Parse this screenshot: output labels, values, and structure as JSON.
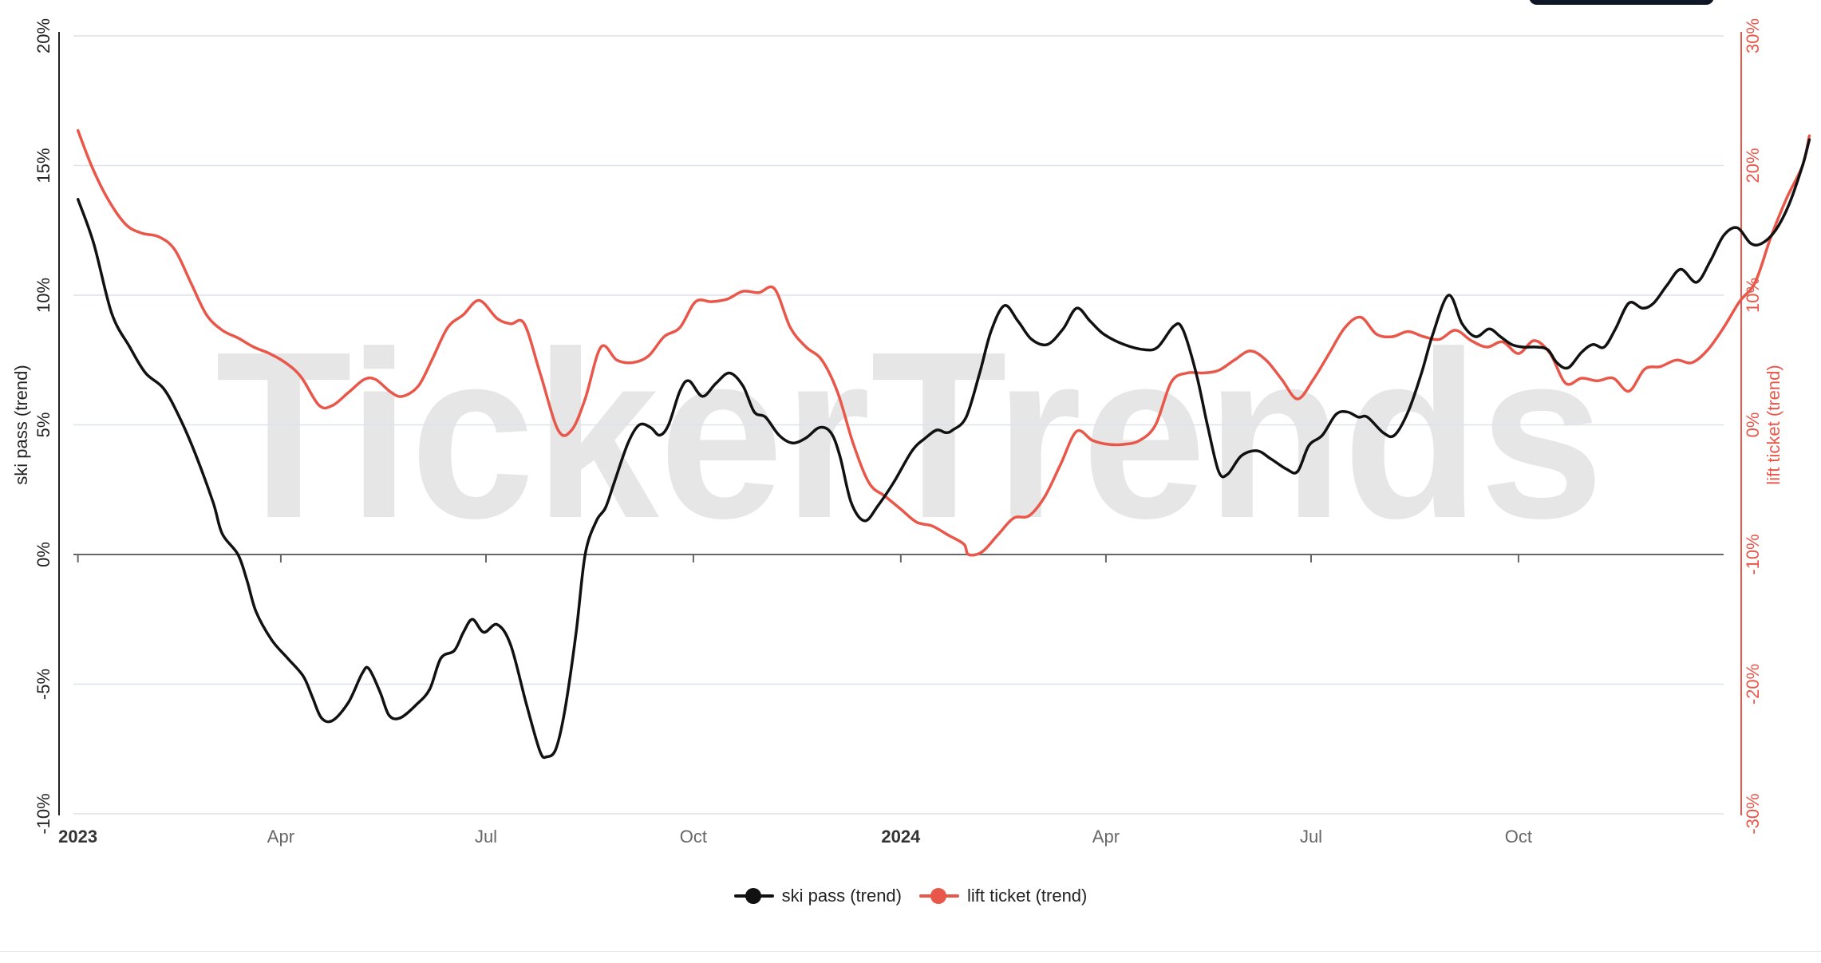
{
  "watermark": "TickerTrends",
  "colors": {
    "ski": "#111111",
    "lift": "#e8574a",
    "grid": "#dde1ea",
    "axis": "#222222"
  },
  "legend": [
    {
      "label": "ski pass  (trend)",
      "color": "#111111"
    },
    {
      "label": "lift ticket  (trend)",
      "color": "#e8574a"
    }
  ],
  "chart_data": {
    "type": "line",
    "x_ticks": [
      "2023",
      "Apr",
      "Jul",
      "Oct",
      "2024",
      "Apr",
      "Jul",
      "Oct"
    ],
    "x_tick_dates": [
      "2023-01-01",
      "2023-04-01",
      "2023-07-01",
      "2023-10-01",
      "2024-01-01",
      "2024-04-01",
      "2024-07-01",
      "2024-10-01"
    ],
    "x_range": [
      "2022-12-30",
      "2024-12-31"
    ],
    "left_axis": {
      "label": "ski pass  (trend)",
      "range": [
        -10,
        20
      ],
      "ticks": [
        "-10%",
        "-5%",
        "0%",
        "5%",
        "10%",
        "15%",
        "20%"
      ]
    },
    "right_axis": {
      "label": "lift ticket  (trend)",
      "range": [
        -30,
        30
      ],
      "ticks": [
        "-30%",
        "-20%",
        "-10%",
        "0%",
        "10%",
        "20%",
        "30%"
      ]
    },
    "grid": true,
    "legend_position": "bottom-center",
    "series": [
      {
        "name": "ski pass  (trend)",
        "axis": "left",
        "points": [
          [
            "2023-01-01",
            13.7
          ],
          [
            "2023-01-08",
            12.0
          ],
          [
            "2023-01-16",
            9.3
          ],
          [
            "2023-01-24",
            8.0
          ],
          [
            "2023-01-31",
            7.0
          ],
          [
            "2023-02-08",
            6.4
          ],
          [
            "2023-02-15",
            5.3
          ],
          [
            "2023-02-22",
            3.9
          ],
          [
            "2023-03-02",
            2.0
          ],
          [
            "2023-03-06",
            0.8
          ],
          [
            "2023-03-13",
            0.0
          ],
          [
            "2023-03-17",
            -1.0
          ],
          [
            "2023-03-21",
            -2.2
          ],
          [
            "2023-03-28",
            -3.3
          ],
          [
            "2023-04-04",
            -4.0
          ],
          [
            "2023-04-11",
            -4.7
          ],
          [
            "2023-04-15",
            -5.5
          ],
          [
            "2023-04-19",
            -6.3
          ],
          [
            "2023-04-24",
            -6.4
          ],
          [
            "2023-05-01",
            -5.7
          ],
          [
            "2023-05-07",
            -4.6
          ],
          [
            "2023-05-10",
            -4.4
          ],
          [
            "2023-05-15",
            -5.3
          ],
          [
            "2023-05-19",
            -6.2
          ],
          [
            "2023-05-24",
            -6.3
          ],
          [
            "2023-05-31",
            -5.8
          ],
          [
            "2023-06-06",
            -5.2
          ],
          [
            "2023-06-11",
            -4.0
          ],
          [
            "2023-06-17",
            -3.7
          ],
          [
            "2023-06-21",
            -3.0
          ],
          [
            "2023-06-25",
            -2.5
          ],
          [
            "2023-06-30",
            -3.0
          ],
          [
            "2023-07-06",
            -2.7
          ],
          [
            "2023-07-12",
            -3.5
          ],
          [
            "2023-07-19",
            -5.8
          ],
          [
            "2023-07-25",
            -7.6
          ],
          [
            "2023-07-28",
            -7.8
          ],
          [
            "2023-08-01",
            -7.5
          ],
          [
            "2023-08-05",
            -6.0
          ],
          [
            "2023-08-10",
            -3.0
          ],
          [
            "2023-08-14",
            0.0
          ],
          [
            "2023-08-19",
            1.3
          ],
          [
            "2023-08-23",
            1.8
          ],
          [
            "2023-08-27",
            2.8
          ],
          [
            "2023-09-02",
            4.3
          ],
          [
            "2023-09-07",
            5.0
          ],
          [
            "2023-09-12",
            4.9
          ],
          [
            "2023-09-16",
            4.6
          ],
          [
            "2023-09-20",
            5.0
          ],
          [
            "2023-09-25",
            6.3
          ],
          [
            "2023-09-29",
            6.7
          ],
          [
            "2023-10-05",
            6.1
          ],
          [
            "2023-10-11",
            6.6
          ],
          [
            "2023-10-17",
            7.0
          ],
          [
            "2023-10-23",
            6.5
          ],
          [
            "2023-10-28",
            5.5
          ],
          [
            "2023-11-02",
            5.3
          ],
          [
            "2023-11-08",
            4.6
          ],
          [
            "2023-11-14",
            4.3
          ],
          [
            "2023-11-20",
            4.5
          ],
          [
            "2023-11-26",
            4.9
          ],
          [
            "2023-12-01",
            4.7
          ],
          [
            "2023-12-05",
            3.8
          ],
          [
            "2023-12-10",
            2.0
          ],
          [
            "2023-12-16",
            1.3
          ],
          [
            "2023-12-22",
            1.9
          ],
          [
            "2023-12-29",
            2.8
          ],
          [
            "2024-01-06",
            4.0
          ],
          [
            "2024-01-12",
            4.5
          ],
          [
            "2024-01-17",
            4.8
          ],
          [
            "2024-01-21",
            4.7
          ],
          [
            "2024-01-24",
            4.8
          ],
          [
            "2024-01-30",
            5.3
          ],
          [
            "2024-02-05",
            7.0
          ],
          [
            "2024-02-10",
            8.6
          ],
          [
            "2024-02-16",
            9.6
          ],
          [
            "2024-02-22",
            9.0
          ],
          [
            "2024-02-28",
            8.3
          ],
          [
            "2024-03-06",
            8.1
          ],
          [
            "2024-03-13",
            8.7
          ],
          [
            "2024-03-19",
            9.5
          ],
          [
            "2024-03-25",
            9.0
          ],
          [
            "2024-03-31",
            8.5
          ],
          [
            "2024-04-09",
            8.1
          ],
          [
            "2024-04-18",
            7.9
          ],
          [
            "2024-04-24",
            8.0
          ],
          [
            "2024-05-01",
            8.8
          ],
          [
            "2024-05-05",
            8.7
          ],
          [
            "2024-05-11",
            7.0
          ],
          [
            "2024-05-16",
            5.0
          ],
          [
            "2024-05-21",
            3.2
          ],
          [
            "2024-05-25",
            3.1
          ],
          [
            "2024-05-31",
            3.8
          ],
          [
            "2024-06-07",
            4.0
          ],
          [
            "2024-06-13",
            3.7
          ],
          [
            "2024-06-20",
            3.3
          ],
          [
            "2024-06-25",
            3.2
          ],
          [
            "2024-06-30",
            4.2
          ],
          [
            "2024-07-06",
            4.6
          ],
          [
            "2024-07-12",
            5.4
          ],
          [
            "2024-07-17",
            5.5
          ],
          [
            "2024-07-22",
            5.3
          ],
          [
            "2024-07-26",
            5.3
          ],
          [
            "2024-08-02",
            4.7
          ],
          [
            "2024-08-07",
            4.6
          ],
          [
            "2024-08-13",
            5.5
          ],
          [
            "2024-08-19",
            7.0
          ],
          [
            "2024-08-24",
            8.5
          ],
          [
            "2024-08-31",
            10.0
          ],
          [
            "2024-09-06",
            8.9
          ],
          [
            "2024-09-12",
            8.4
          ],
          [
            "2024-09-18",
            8.7
          ],
          [
            "2024-09-23",
            8.4
          ],
          [
            "2024-09-28",
            8.1
          ],
          [
            "2024-10-03",
            8.0
          ],
          [
            "2024-10-09",
            8.0
          ],
          [
            "2024-10-14",
            7.9
          ],
          [
            "2024-10-18",
            7.4
          ],
          [
            "2024-10-23",
            7.2
          ],
          [
            "2024-10-29",
            7.8
          ],
          [
            "2024-11-03",
            8.1
          ],
          [
            "2024-11-08",
            8.0
          ],
          [
            "2024-11-13",
            8.7
          ],
          [
            "2024-11-19",
            9.7
          ],
          [
            "2024-11-25",
            9.5
          ],
          [
            "2024-11-30",
            9.7
          ],
          [
            "2024-12-06",
            10.4
          ],
          [
            "2024-12-12",
            11.0
          ],
          [
            "2024-12-19",
            10.5
          ],
          [
            "2024-12-25",
            11.3
          ],
          [
            "2024-12-31",
            12.3
          ],
          [
            "2025-01-06",
            12.6
          ],
          [
            "2025-01-12",
            12.0
          ],
          [
            "2025-01-17",
            12.0
          ],
          [
            "2025-01-23",
            12.5
          ],
          [
            "2025-01-29",
            13.5
          ],
          [
            "2025-02-04",
            15.0
          ],
          [
            "2025-02-07",
            16.0
          ]
        ]
      },
      {
        "name": "lift ticket  (trend)",
        "axis": "right",
        "points": [
          [
            "2023-01-01",
            22.7
          ],
          [
            "2023-01-07",
            20.0
          ],
          [
            "2023-01-14",
            17.5
          ],
          [
            "2023-01-22",
            15.5
          ],
          [
            "2023-01-29",
            14.8
          ],
          [
            "2023-02-06",
            14.5
          ],
          [
            "2023-02-13",
            13.5
          ],
          [
            "2023-02-20",
            11.0
          ],
          [
            "2023-02-27",
            8.5
          ],
          [
            "2023-03-06",
            7.3
          ],
          [
            "2023-03-13",
            6.7
          ],
          [
            "2023-03-20",
            6.0
          ],
          [
            "2023-03-27",
            5.5
          ],
          [
            "2023-04-03",
            4.8
          ],
          [
            "2023-04-10",
            3.7
          ],
          [
            "2023-04-18",
            1.5
          ],
          [
            "2023-04-24",
            1.5
          ],
          [
            "2023-05-01",
            2.5
          ],
          [
            "2023-05-08",
            3.5
          ],
          [
            "2023-05-13",
            3.5
          ],
          [
            "2023-05-20",
            2.5
          ],
          [
            "2023-05-25",
            2.2
          ],
          [
            "2023-06-01",
            3.0
          ],
          [
            "2023-06-07",
            5.0
          ],
          [
            "2023-06-14",
            7.5
          ],
          [
            "2023-06-21",
            8.5
          ],
          [
            "2023-06-28",
            9.6
          ],
          [
            "2023-07-06",
            8.2
          ],
          [
            "2023-07-12",
            7.8
          ],
          [
            "2023-07-18",
            7.8
          ],
          [
            "2023-07-25",
            4.0
          ],
          [
            "2023-08-02",
            -0.4
          ],
          [
            "2023-08-08",
            -0.4
          ],
          [
            "2023-08-14",
            2.0
          ],
          [
            "2023-08-21",
            6.0
          ],
          [
            "2023-08-28",
            5.0
          ],
          [
            "2023-09-04",
            4.8
          ],
          [
            "2023-09-11",
            5.3
          ],
          [
            "2023-09-18",
            6.8
          ],
          [
            "2023-09-25",
            7.5
          ],
          [
            "2023-10-02",
            9.5
          ],
          [
            "2023-10-09",
            9.5
          ],
          [
            "2023-10-16",
            9.7
          ],
          [
            "2023-10-23",
            10.3
          ],
          [
            "2023-10-30",
            10.2
          ],
          [
            "2023-11-06",
            10.5
          ],
          [
            "2023-11-13",
            7.5
          ],
          [
            "2023-11-20",
            6.0
          ],
          [
            "2023-11-27",
            5.0
          ],
          [
            "2023-12-04",
            2.5
          ],
          [
            "2023-12-11",
            -1.5
          ],
          [
            "2023-12-18",
            -4.5
          ],
          [
            "2023-12-25",
            -5.5
          ],
          [
            "2024-01-01",
            -6.5
          ],
          [
            "2024-01-08",
            -7.5
          ],
          [
            "2024-01-15",
            -7.8
          ],
          [
            "2024-01-22",
            -8.5
          ],
          [
            "2024-01-29",
            -9.2
          ],
          [
            "2024-01-31",
            -10.0
          ],
          [
            "2024-02-06",
            -9.8
          ],
          [
            "2024-02-13",
            -8.5
          ],
          [
            "2024-02-20",
            -7.2
          ],
          [
            "2024-02-27",
            -7.0
          ],
          [
            "2024-03-05",
            -5.5
          ],
          [
            "2024-03-12",
            -3.0
          ],
          [
            "2024-03-19",
            -0.5
          ],
          [
            "2024-03-26",
            -1.2
          ],
          [
            "2024-04-02",
            -1.5
          ],
          [
            "2024-04-09",
            -1.5
          ],
          [
            "2024-04-16",
            -1.2
          ],
          [
            "2024-04-23",
            0.0
          ],
          [
            "2024-04-30",
            3.3
          ],
          [
            "2024-05-07",
            4.0
          ],
          [
            "2024-05-14",
            4.0
          ],
          [
            "2024-05-21",
            4.2
          ],
          [
            "2024-05-28",
            5.0
          ],
          [
            "2024-06-04",
            5.7
          ],
          [
            "2024-06-11",
            5.0
          ],
          [
            "2024-06-18",
            3.5
          ],
          [
            "2024-06-25",
            2.0
          ],
          [
            "2024-07-02",
            3.5
          ],
          [
            "2024-07-09",
            5.5
          ],
          [
            "2024-07-16",
            7.5
          ],
          [
            "2024-07-23",
            8.3
          ],
          [
            "2024-07-30",
            7.0
          ],
          [
            "2024-08-06",
            6.8
          ],
          [
            "2024-08-13",
            7.2
          ],
          [
            "2024-08-20",
            6.8
          ],
          [
            "2024-08-27",
            6.6
          ],
          [
            "2024-09-03",
            7.3
          ],
          [
            "2024-09-10",
            6.5
          ],
          [
            "2024-09-17",
            6.0
          ],
          [
            "2024-09-24",
            6.4
          ],
          [
            "2024-10-01",
            5.5
          ],
          [
            "2024-10-08",
            6.5
          ],
          [
            "2024-10-15",
            5.5
          ],
          [
            "2024-10-22",
            3.2
          ],
          [
            "2024-10-29",
            3.6
          ],
          [
            "2024-11-05",
            3.4
          ],
          [
            "2024-11-12",
            3.6
          ],
          [
            "2024-11-19",
            2.6
          ],
          [
            "2024-11-26",
            4.3
          ],
          [
            "2024-12-03",
            4.5
          ],
          [
            "2024-12-10",
            5.0
          ],
          [
            "2024-12-17",
            4.8
          ],
          [
            "2024-12-24",
            5.8
          ],
          [
            "2024-12-31",
            7.5
          ],
          [
            "2025-01-07",
            9.5
          ],
          [
            "2025-01-14",
            11.0
          ],
          [
            "2025-01-21",
            14.5
          ],
          [
            "2025-01-28",
            17.5
          ],
          [
            "2025-02-04",
            20.0
          ],
          [
            "2025-02-07",
            22.3
          ]
        ]
      }
    ]
  }
}
